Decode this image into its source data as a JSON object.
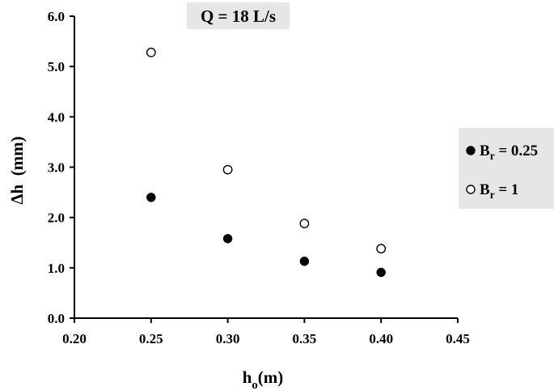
{
  "chart_data": {
    "type": "scatter",
    "title": "",
    "annotation": "Q = 18 L/s",
    "xlabel": {
      "main": "h",
      "sub": "o",
      "rest": "(m)"
    },
    "ylabel": "Δh  (mm)",
    "xlim": [
      0.2,
      0.45
    ],
    "ylim": [
      0.0,
      6.0
    ],
    "x_ticks": [
      "0.20",
      "0.25",
      "0.30",
      "0.35",
      "0.40",
      "0.45"
    ],
    "y_ticks": [
      "0.0",
      "1.0",
      "2.0",
      "3.0",
      "4.0",
      "5.0",
      "6.0"
    ],
    "grid": false,
    "legend_position": "right",
    "colors": {
      "panel": "#e6e6e6",
      "marker": "#000000",
      "marker_open_fill": "#ffffff"
    },
    "series": [
      {
        "name": {
          "main": "B",
          "sub": "r",
          "rest": " = 0.25"
        },
        "marker": "filled",
        "x": [
          0.25,
          0.3,
          0.35,
          0.4
        ],
        "y": [
          2.4,
          1.58,
          1.13,
          0.91
        ]
      },
      {
        "name": {
          "main": "B",
          "sub": "r",
          "rest": " = 1"
        },
        "marker": "open",
        "x": [
          0.25,
          0.3,
          0.35,
          0.4
        ],
        "y": [
          5.28,
          2.95,
          1.88,
          1.38
        ]
      }
    ]
  }
}
